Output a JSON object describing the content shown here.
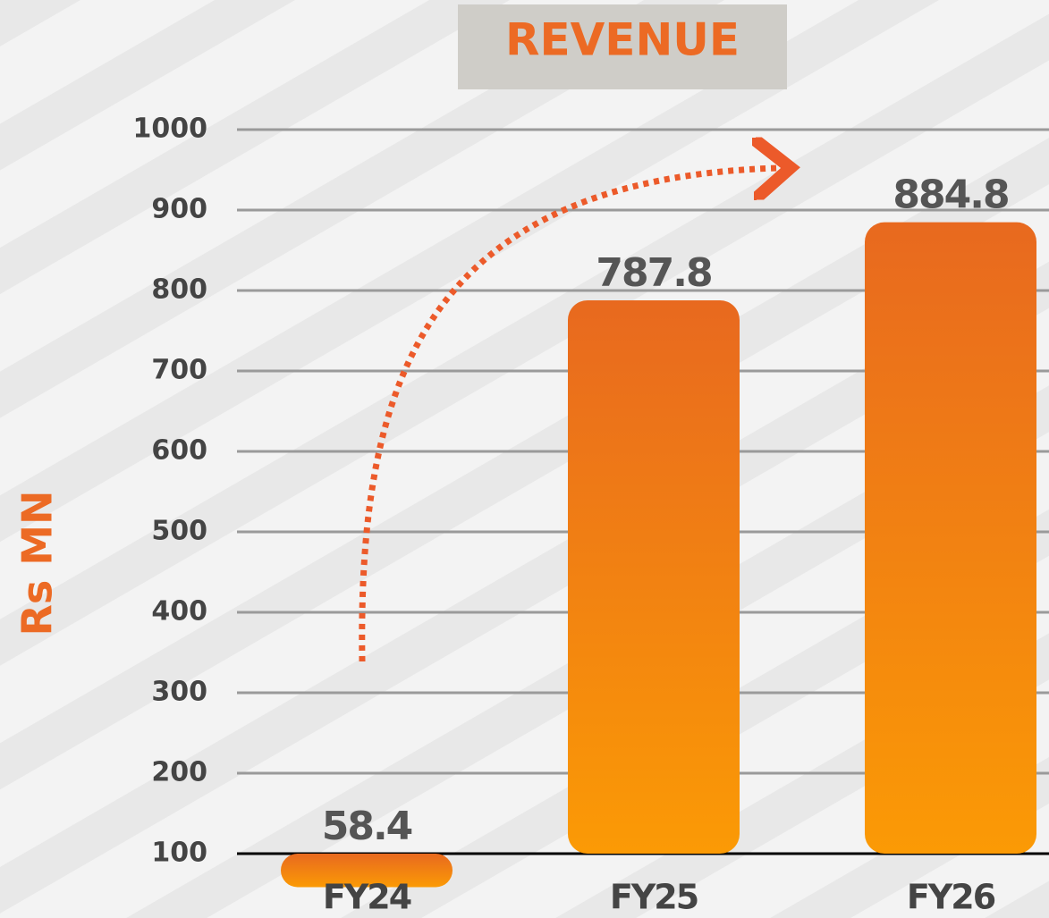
{
  "chart_data": {
    "type": "bar",
    "title": "REVENUE",
    "y_label": "Rs MN",
    "categories": [
      "FY24",
      "FY25",
      "FY26"
    ],
    "values": [
      58.4,
      787.8,
      884.8
    ],
    "ylim": [
      100,
      1000
    ],
    "yticks": [
      100,
      200,
      300,
      400,
      500,
      600,
      700,
      800,
      900,
      1000
    ],
    "grid": true,
    "color": "#ec6a1e"
  }
}
